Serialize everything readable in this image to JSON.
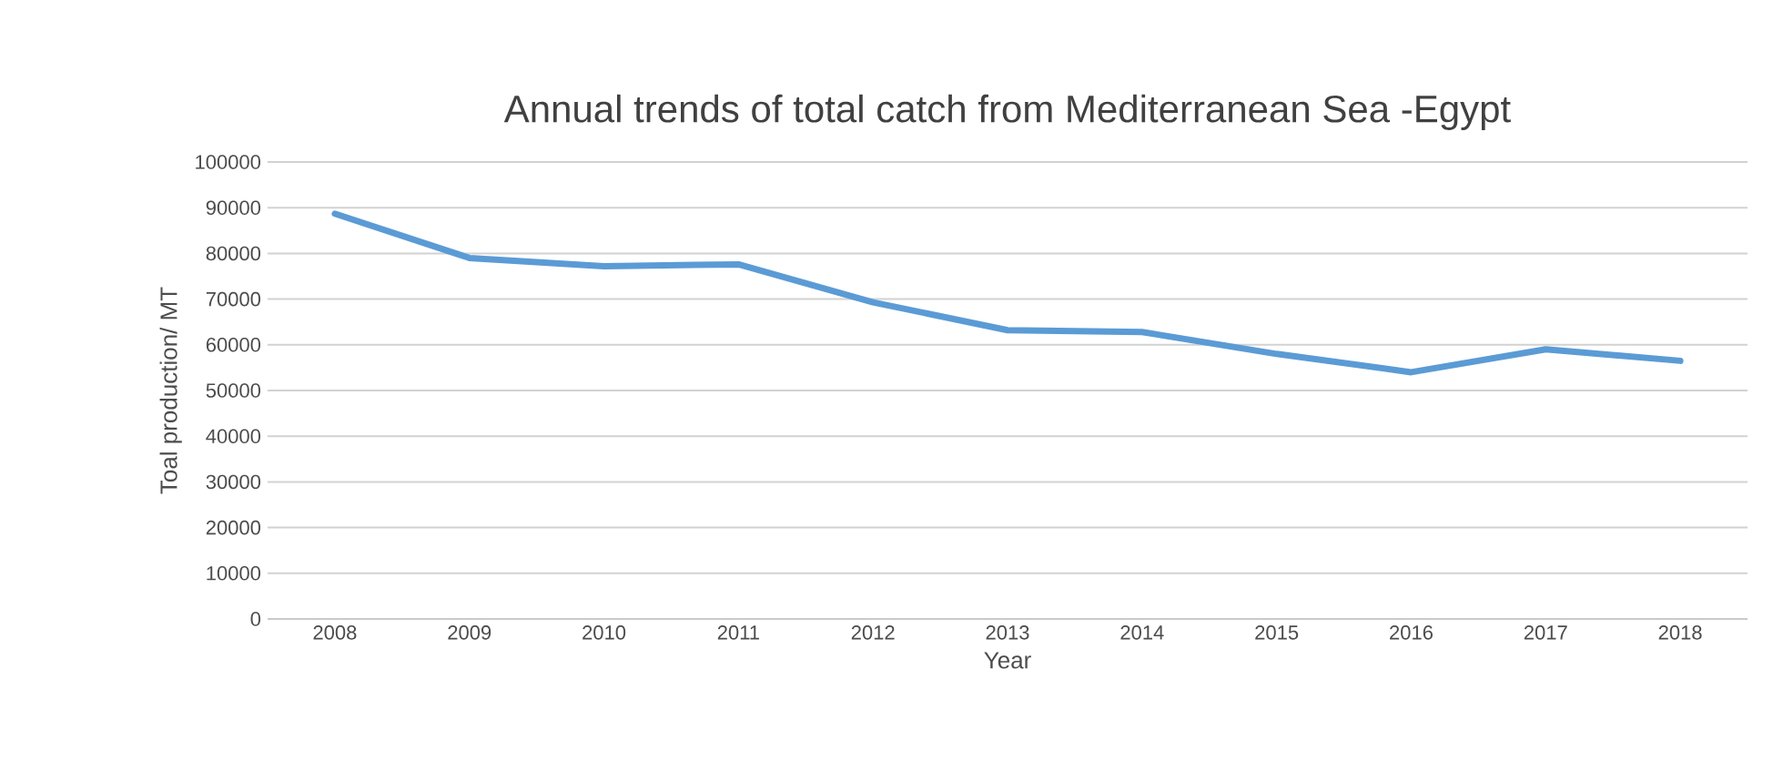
{
  "chart_data": {
    "type": "line",
    "title": "Annual trends of total catch from Mediterranean Sea -Egypt",
    "xlabel": "Year",
    "ylabel": "Toal production/ MT",
    "categories": [
      "2008",
      "2009",
      "2010",
      "2011",
      "2012",
      "2013",
      "2014",
      "2015",
      "2016",
      "2017",
      "2018"
    ],
    "series": [
      {
        "color": "#5b9bd5",
        "values": [
          88700,
          79000,
          77200,
          77600,
          69300,
          63200,
          62800,
          58000,
          54000,
          59000,
          56500
        ]
      }
    ],
    "ylim": [
      0,
      100000
    ],
    "yticks": [
      0,
      10000,
      20000,
      30000,
      40000,
      50000,
      60000,
      70000,
      80000,
      90000,
      100000
    ],
    "grid": "y",
    "legend": false,
    "marker": "none",
    "line_style": "solid"
  }
}
